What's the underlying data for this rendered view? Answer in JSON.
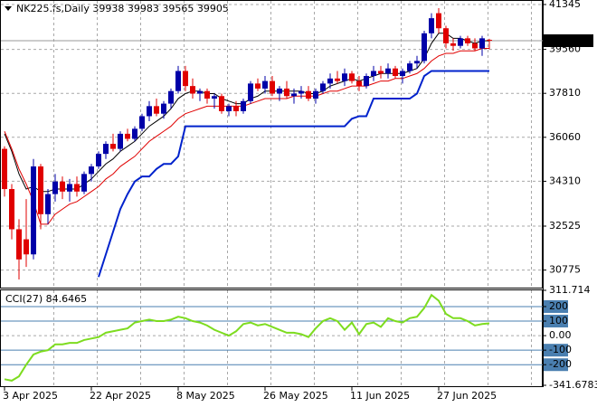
{
  "chart_data": [
    {
      "type": "candlestick",
      "title": "NK225.fs,Daily  39938 39983 39565 39905",
      "categories": [
        "3 Apr 2025",
        null,
        null,
        null,
        null,
        null,
        null,
        null,
        null,
        null,
        null,
        null,
        "22 Apr 2025",
        null,
        null,
        null,
        null,
        null,
        null,
        null,
        null,
        null,
        null,
        null,
        "8 May 2025",
        null,
        null,
        null,
        null,
        null,
        null,
        null,
        null,
        null,
        null,
        null,
        "26 May 2025",
        null,
        null,
        null,
        null,
        null,
        null,
        null,
        null,
        null,
        null,
        null,
        "11 Jun 2025",
        null,
        null,
        null,
        null,
        null,
        null,
        null,
        null,
        null,
        null,
        null,
        "27 Jun 2025",
        null,
        null,
        null,
        null,
        null,
        null,
        null
      ],
      "open": [
        35600,
        34000,
        32400,
        32000,
        31400,
        34900,
        33000,
        33800,
        34300,
        33900,
        34200,
        33900,
        34600,
        34900,
        35400,
        35800,
        35600,
        36200,
        36000,
        36400,
        36900,
        37300,
        37000,
        37400,
        37900,
        38700,
        38100,
        37800,
        37900,
        37600,
        37700,
        37100,
        37300,
        37100,
        37500,
        38200,
        38000,
        38300,
        37800,
        38000,
        37700,
        37800,
        37900,
        37600,
        37900,
        38200,
        38400,
        38300,
        38600,
        38300,
        38100,
        38500,
        38700,
        38600,
        38800,
        38500,
        38700,
        39000,
        39100,
        40200,
        41000,
        40400,
        39800,
        39700,
        40000,
        39800,
        39600,
        39938
      ],
      "high": [
        35700,
        34200,
        32800,
        33600,
        35200,
        35000,
        34000,
        34600,
        34500,
        34400,
        34500,
        34700,
        35000,
        35500,
        35900,
        36200,
        36300,
        36400,
        36500,
        37000,
        37500,
        37600,
        37500,
        38000,
        38900,
        38900,
        38400,
        38000,
        38000,
        37800,
        37800,
        37400,
        37500,
        37600,
        38300,
        38400,
        38500,
        38500,
        38100,
        38300,
        38000,
        38100,
        38100,
        38000,
        38300,
        38600,
        38700,
        38800,
        38700,
        38500,
        38600,
        38900,
        38900,
        39000,
        38900,
        38800,
        39100,
        39300,
        40300,
        41000,
        41200,
        40500,
        40000,
        40100,
        40100,
        40000,
        40100,
        39983
      ],
      "low": [
        33700,
        32000,
        30400,
        30900,
        31200,
        32400,
        32600,
        33500,
        33600,
        33500,
        33700,
        33800,
        34300,
        34800,
        35200,
        35500,
        35500,
        35900,
        35900,
        36300,
        36700,
        36900,
        36800,
        37200,
        37800,
        37900,
        37600,
        37500,
        37400,
        37200,
        37000,
        36900,
        36900,
        37000,
        37400,
        37900,
        37800,
        37700,
        37500,
        37600,
        37400,
        37600,
        37500,
        37400,
        37800,
        38000,
        38200,
        38100,
        38200,
        37900,
        38000,
        38300,
        38400,
        38400,
        38400,
        38200,
        38600,
        38800,
        39000,
        40000,
        40200,
        39600,
        39500,
        39600,
        39700,
        39500,
        39300,
        39565
      ],
      "close": [
        34000,
        32400,
        31200,
        31400,
        34900,
        33000,
        33800,
        34300,
        33900,
        34200,
        33900,
        34600,
        34900,
        35400,
        35800,
        35600,
        36200,
        36000,
        36400,
        36900,
        37300,
        37000,
        37400,
        37900,
        38700,
        38100,
        37800,
        37900,
        37600,
        37700,
        37100,
        37300,
        37100,
        37500,
        38200,
        38000,
        38300,
        37800,
        38000,
        37700,
        37800,
        37900,
        37600,
        37900,
        38200,
        38400,
        38300,
        38600,
        38300,
        38100,
        38500,
        38700,
        38600,
        38800,
        38500,
        38700,
        39000,
        39100,
        40200,
        40800,
        40400,
        39800,
        39700,
        40000,
        39800,
        39600,
        40000,
        39905
      ],
      "up_color": "#0000a8",
      "down_color": "#e00000",
      "lines": [
        {
          "color": "#000000",
          "width": 1,
          "values": [
            36200,
            35500,
            34600,
            34000,
            34100,
            33900,
            33900,
            34000,
            34000,
            34000,
            34000,
            34200,
            34400,
            34700,
            35000,
            35200,
            35500,
            35700,
            35900,
            36200,
            36500,
            36700,
            36900,
            37200,
            37600,
            37800,
            37900,
            37900,
            37800,
            37800,
            37600,
            37500,
            37400,
            37400,
            37600,
            37700,
            37900,
            37900,
            37900,
            37900,
            37900,
            37900,
            37800,
            37800,
            37900,
            38100,
            38200,
            38300,
            38400,
            38300,
            38400,
            38500,
            38600,
            38600,
            38600,
            38600,
            38700,
            38800,
            39200,
            39800,
            40200,
            40200,
            40000,
            40000,
            39900,
            39800,
            39900,
            39900
          ]
        },
        {
          "color": "#e00000",
          "width": 1,
          "values": [
            36300,
            35600,
            34800,
            34200,
            33500,
            32600,
            32600,
            33000,
            33200,
            33400,
            33500,
            33700,
            33900,
            34100,
            34400,
            34600,
            34900,
            35100,
            35300,
            35600,
            35900,
            36100,
            36300,
            36500,
            36800,
            37000,
            37100,
            37200,
            37300,
            37300,
            37300,
            37300,
            37300,
            37300,
            37400,
            37500,
            37600,
            37600,
            37600,
            37600,
            37700,
            37700,
            37700,
            37700,
            37800,
            37900,
            37900,
            38000,
            38100,
            38100,
            38100,
            38200,
            38300,
            38300,
            38400,
            38400,
            38500,
            38600,
            38800,
            39100,
            39300,
            39400,
            39400,
            39500,
            39500,
            39500,
            39600,
            39600
          ]
        },
        {
          "color": "#0022cc",
          "width": 2,
          "values": [
            null,
            null,
            null,
            null,
            null,
            null,
            null,
            null,
            null,
            null,
            null,
            null,
            null,
            30500,
            31400,
            32300,
            33200,
            33800,
            34300,
            34500,
            34500,
            34800,
            35000,
            35000,
            35300,
            36500,
            36500,
            36500,
            36500,
            36500,
            36500,
            36500,
            36500,
            36500,
            36500,
            36500,
            36500,
            36500,
            36500,
            36500,
            36500,
            36500,
            36500,
            36500,
            36500,
            36500,
            36500,
            36500,
            36800,
            36900,
            36900,
            37600,
            37600,
            37600,
            37600,
            37600,
            37600,
            37800,
            38500,
            38700,
            38700,
            38700,
            38700,
            38700,
            38700,
            38700,
            38700,
            38700
          ]
        }
      ],
      "ylim": [
        30077,
        41453
      ],
      "yticks": [
        41345,
        39560,
        37810,
        36060,
        34310,
        32525,
        30775
      ],
      "last_price": 39905,
      "grid": true
    },
    {
      "type": "line",
      "title": "CCI(27) 84.6465",
      "color": "#7ddc1f",
      "values": [
        -300,
        -310,
        -280,
        -200,
        -130,
        -110,
        -100,
        -60,
        -60,
        -50,
        -50,
        -30,
        -20,
        -10,
        20,
        30,
        40,
        50,
        90,
        100,
        110,
        100,
        100,
        110,
        130,
        120,
        100,
        90,
        70,
        40,
        20,
        0,
        30,
        80,
        90,
        70,
        80,
        60,
        40,
        20,
        20,
        10,
        -10,
        50,
        100,
        120,
        100,
        40,
        90,
        10,
        80,
        90,
        60,
        120,
        100,
        90,
        120,
        130,
        190,
        280,
        240,
        150,
        120,
        120,
        100,
        70,
        80,
        84.6465
      ],
      "ylim": [
        -341.6783,
        311.714
      ],
      "yticks": [
        311.714,
        200,
        100,
        {
          "value": 0,
          "label": "0.00"
        },
        -100,
        -200,
        -341.6783
      ],
      "level_color": "#4a7fb0"
    }
  ]
}
